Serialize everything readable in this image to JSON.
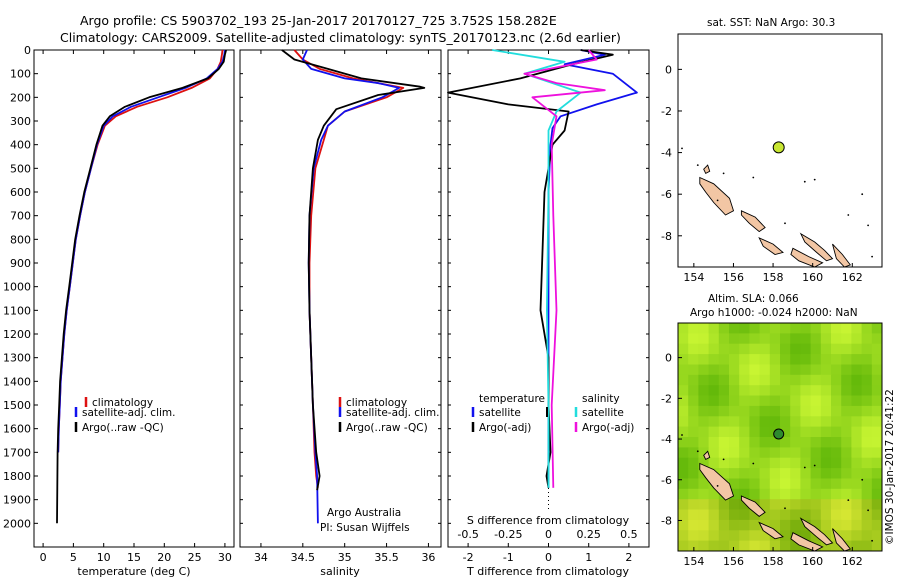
{
  "title_line1": "Argo profile: CS 5903702_193 25-Jan-2017 20170127_725 3.752S 158.282E",
  "title_line2": "Climatology: CARS2009. Satellite-adjusted climatology: synTS_20170123.nc (2.6d earlier)",
  "side_label": "©IMOS 30-Jan-2017 20:41:22",
  "colors": {
    "climatology": "#dd1111",
    "satellite": "#1111ee",
    "argo": "#000000",
    "sal_satellite": "#22dddd",
    "sal_argo": "#ee11dd",
    "land": "#f2c6a4",
    "marker": "#c8e632"
  },
  "chart_data": [
    {
      "type": "line",
      "name": "temperature-panel",
      "xlabel": "temperature (deg C)",
      "ylim": [
        0,
        2100
      ],
      "y_inverted": true,
      "xlim": [
        -1.5,
        31.5
      ],
      "xticks": [
        0,
        5,
        10,
        15,
        20,
        25,
        30
      ],
      "yticks": [
        0,
        100,
        200,
        300,
        400,
        500,
        600,
        700,
        800,
        900,
        1000,
        1100,
        1200,
        1300,
        1400,
        1500,
        1600,
        1700,
        1800,
        1900,
        2000
      ],
      "legend": [
        "climatology",
        "satellite-adj. clim.",
        "Argo(..raw -QC)"
      ],
      "legend_placement": "lower-center",
      "series": [
        {
          "name": "climatology",
          "color_key": "climatology",
          "x": [
            29.6,
            29.5,
            29.3,
            28.8,
            27.5,
            24.5,
            20.5,
            15.5,
            12.0,
            10.2,
            9.0,
            7.9,
            6.9,
            6.1,
            5.4,
            4.9,
            4.4,
            3.9,
            3.5,
            3.2,
            2.9,
            2.75,
            2.6,
            2.5
          ],
          "y": [
            0,
            20,
            50,
            80,
            120,
            160,
            200,
            240,
            280,
            320,
            400,
            500,
            600,
            700,
            800,
            900,
            1000,
            1100,
            1200,
            1300,
            1400,
            1500,
            1600,
            1700
          ]
        },
        {
          "name": "satellite-adj. clim.",
          "color_key": "satellite",
          "x": [
            30.0,
            29.9,
            29.6,
            28.8,
            27.0,
            23.5,
            19.0,
            14.5,
            11.5,
            10.0,
            8.9,
            7.9,
            6.9,
            6.1,
            5.4,
            4.9,
            4.4,
            3.9,
            3.5,
            3.2,
            2.9,
            2.75,
            2.6,
            2.5
          ],
          "y": [
            0,
            20,
            50,
            80,
            120,
            160,
            200,
            240,
            280,
            320,
            400,
            500,
            600,
            700,
            800,
            900,
            1000,
            1100,
            1200,
            1300,
            1400,
            1500,
            1600,
            1700
          ]
        },
        {
          "name": "Argo(..raw -QC)",
          "color_key": "argo",
          "x": [
            30.2,
            30.0,
            29.8,
            29.0,
            27.2,
            23.0,
            17.5,
            13.5,
            11.0,
            9.8,
            8.8,
            7.8,
            6.8,
            6.0,
            5.3,
            4.8,
            4.3,
            3.8,
            3.4,
            3.1,
            2.8,
            2.65,
            2.5,
            2.4,
            2.35,
            2.3
          ],
          "y": [
            0,
            20,
            50,
            80,
            120,
            160,
            200,
            240,
            280,
            320,
            400,
            500,
            600,
            700,
            800,
            900,
            1000,
            1100,
            1200,
            1300,
            1400,
            1500,
            1600,
            1700,
            1850,
            2000
          ]
        }
      ]
    },
    {
      "type": "line",
      "name": "salinity-panel",
      "xlabel": "salinity",
      "ylim": [
        0,
        2100
      ],
      "y_inverted": true,
      "xlim": [
        33.75,
        36.15
      ],
      "xticks": [
        34,
        34.5,
        35,
        35.5,
        36
      ],
      "legend": [
        "climatology",
        "satellite-adj. clim.",
        "Argo(..raw -QC)"
      ],
      "legend_placement": "lower-center",
      "annotation": [
        "Argo Australia",
        "PI: Susan Wijffels"
      ],
      "series": [
        {
          "name": "climatology",
          "color_key": "climatology",
          "x": [
            34.4,
            34.5,
            34.7,
            35.1,
            35.4,
            35.7,
            35.5,
            35.0,
            34.8,
            34.75,
            34.65,
            34.6,
            34.58,
            34.58,
            34.6,
            34.62,
            34.64,
            34.66,
            34.68
          ],
          "y": [
            0,
            40,
            80,
            120,
            140,
            160,
            200,
            260,
            320,
            380,
            500,
            700,
            900,
            1100,
            1300,
            1500,
            1700,
            1800,
            1850
          ]
        },
        {
          "name": "satellite-adj. clim.",
          "color_key": "satellite",
          "x": [
            34.55,
            34.5,
            34.6,
            35.0,
            35.4,
            35.65,
            35.45,
            35.0,
            34.8,
            34.72,
            34.63,
            34.58,
            34.57,
            34.58,
            34.6,
            34.62,
            34.65,
            34.67,
            34.68
          ],
          "y": [
            0,
            40,
            80,
            120,
            140,
            160,
            200,
            260,
            320,
            380,
            500,
            700,
            900,
            1100,
            1300,
            1500,
            1700,
            1800,
            2000
          ]
        },
        {
          "name": "Argo(..raw -QC)",
          "color_key": "argo",
          "x": [
            34.25,
            34.4,
            34.8,
            35.2,
            35.9,
            35.95,
            35.4,
            34.9,
            34.75,
            34.68,
            34.62,
            34.58,
            34.57,
            34.58,
            34.6,
            34.62,
            34.66,
            34.7,
            34.67
          ],
          "y": [
            0,
            40,
            80,
            120,
            155,
            160,
            190,
            250,
            320,
            380,
            500,
            700,
            900,
            1100,
            1300,
            1500,
            1700,
            1800,
            1860
          ]
        }
      ]
    },
    {
      "type": "line",
      "name": "difference-panel",
      "xlabel": "T difference from climatology",
      "xlabel_top": "S difference from climatology",
      "ylim": [
        0,
        2100
      ],
      "y_inverted": true,
      "xlim": [
        -2.5,
        2.5
      ],
      "xticks": [
        -2,
        -1,
        0,
        1,
        2
      ],
      "xticks_top": [
        -0.5,
        -0.25,
        0,
        0.25,
        0.5
      ],
      "xticks_top_labels": [
        "-0.5",
        "-0.25",
        "0",
        "0.25",
        "0.5"
      ],
      "legend_groups": [
        {
          "heading": "temperature",
          "items": [
            "satellite",
            "Argo(-adj)"
          ]
        },
        {
          "heading": "salinity",
          "items": [
            "satellite",
            "Argo(-adj)"
          ]
        }
      ],
      "series": [
        {
          "name": "temperature satellite",
          "color_key": "satellite",
          "x": [
            0.8,
            1.4,
            0.4,
            1.6,
            2.2,
            1.2,
            0.3,
            0.1,
            0.05,
            0.0,
            0.0,
            0.0,
            0.0,
            0.0,
            0.0
          ],
          "y": [
            0,
            20,
            60,
            100,
            180,
            230,
            280,
            330,
            400,
            600,
            900,
            1200,
            1500,
            1700,
            1850
          ]
        },
        {
          "name": "temperature Argo(-adj)",
          "color_key": "argo",
          "x": [
            0.8,
            1.6,
            0.6,
            -0.7,
            -2.5,
            -1.0,
            0.5,
            0.4,
            0.1,
            -0.1,
            -0.2,
            0.0,
            0.0,
            0.05,
            -0.05,
            0.0
          ],
          "y": [
            0,
            20,
            60,
            120,
            180,
            230,
            260,
            340,
            400,
            600,
            1100,
            1300,
            1500,
            1700,
            1800,
            1850
          ]
        },
        {
          "name": "salinity satellite",
          "color_key": "sal_satellite",
          "x": [
            -0.35,
            0.1,
            -0.15,
            0.2,
            0.05,
            0.0,
            0.0,
            -0.01,
            0.0,
            0.0
          ],
          "y": [
            0,
            50,
            100,
            180,
            260,
            340,
            600,
            1100,
            1500,
            1850
          ]
        },
        {
          "name": "salinity Argo(-adj)",
          "color_key": "sal_argo",
          "x": [
            0.25,
            0.3,
            -0.15,
            0.05,
            0.35,
            -0.1,
            0.05,
            0.02,
            0.03,
            0.05,
            0.02,
            0.03
          ],
          "y": [
            0,
            40,
            100,
            140,
            170,
            200,
            280,
            400,
            700,
            1100,
            1500,
            1850
          ]
        }
      ]
    },
    {
      "type": "scatter",
      "name": "sst-map",
      "title": "sat. SST: NaN Argo: 30.3",
      "xlim": [
        153.2,
        163.5
      ],
      "ylim": [
        -9.5,
        1.7
      ],
      "xticks": [
        154,
        156,
        158,
        160,
        162
      ],
      "yticks": [
        0,
        -2,
        -4,
        -6,
        -8
      ],
      "point": {
        "lon": 158.282,
        "lat": -3.752
      }
    },
    {
      "type": "heatmap",
      "name": "sla-map",
      "title_line1": "Altim. SLA: 0.066",
      "title_line2": "Argo h1000: -0.024 h2000: NaN",
      "xlim": [
        153.2,
        163.5
      ],
      "ylim": [
        -9.5,
        1.7
      ],
      "xticks": [
        154,
        156,
        158,
        160,
        162
      ],
      "yticks": [
        0,
        -2,
        -4,
        -6,
        -8
      ],
      "point": {
        "lon": 158.282,
        "lat": -3.752
      }
    }
  ]
}
